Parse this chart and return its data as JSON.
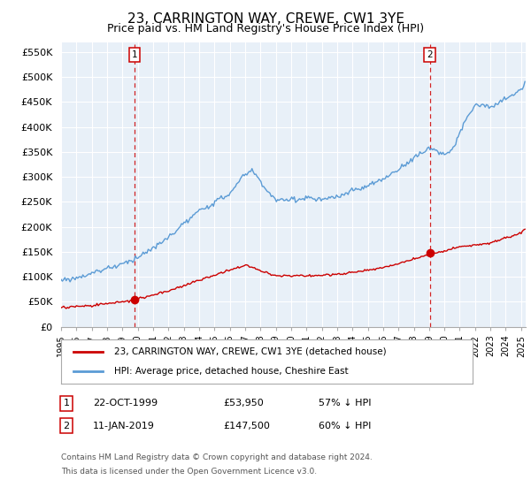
{
  "title": "23, CARRINGTON WAY, CREWE, CW1 3YE",
  "subtitle": "Price paid vs. HM Land Registry's House Price Index (HPI)",
  "ylabel_ticks": [
    "£0",
    "£50K",
    "£100K",
    "£150K",
    "£200K",
    "£250K",
    "£300K",
    "£350K",
    "£400K",
    "£450K",
    "£500K",
    "£550K"
  ],
  "ytick_values": [
    0,
    50000,
    100000,
    150000,
    200000,
    250000,
    300000,
    350000,
    400000,
    450000,
    500000,
    550000
  ],
  "ylim": [
    0,
    570000
  ],
  "xlim_left": 1995.0,
  "xlim_right": 2025.3,
  "xlabel_years": [
    1995,
    1996,
    1997,
    1998,
    1999,
    2000,
    2001,
    2002,
    2003,
    2004,
    2005,
    2006,
    2007,
    2008,
    2009,
    2010,
    2011,
    2012,
    2013,
    2014,
    2015,
    2016,
    2017,
    2018,
    2019,
    2020,
    2021,
    2022,
    2023,
    2024,
    2025
  ],
  "sale1_price": 53950,
  "sale1_year": 1999.8,
  "sale2_price": 147500,
  "sale2_year": 2019.05,
  "sale1_date": "22-OCT-1999",
  "sale2_date": "11-JAN-2019",
  "sale1_pct": "57%",
  "sale2_pct": "60%",
  "legend_line1": "23, CARRINGTON WAY, CREWE, CW1 3YE (detached house)",
  "legend_line2": "HPI: Average price, detached house, Cheshire East",
  "footer1": "Contains HM Land Registry data © Crown copyright and database right 2024.",
  "footer2": "This data is licensed under the Open Government Licence v3.0.",
  "hpi_color": "#5b9bd5",
  "hpi_fill": "#ddeeff",
  "sale_color": "#cc0000",
  "background_color": "#ffffff",
  "plot_bg": "#e8f0f8",
  "grid_color": "#ffffff",
  "title_fontsize": 11,
  "subtitle_fontsize": 9
}
